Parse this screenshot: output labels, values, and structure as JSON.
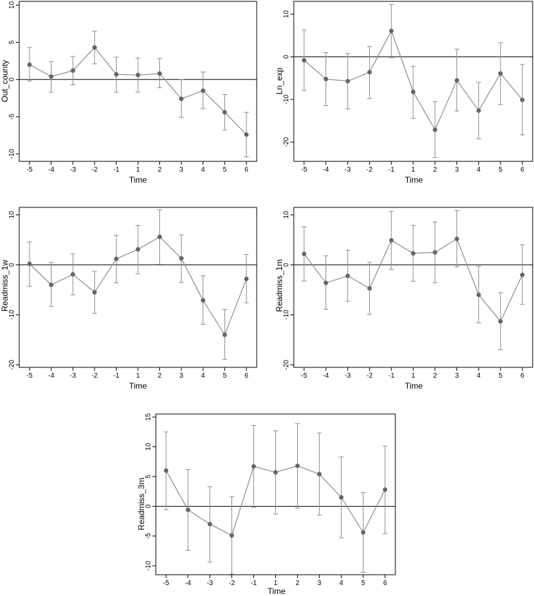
{
  "chart_data": [
    {
      "type": "line",
      "xlabel": "Time",
      "ylabel": "Out_county",
      "categories": [
        "-5",
        "-4",
        "-3",
        "-2",
        "-1",
        "1",
        "2",
        "3",
        "4",
        "5",
        "6"
      ],
      "ylim": [
        -11,
        10.5
      ],
      "yticks": [
        -10,
        -5,
        0,
        5,
        10
      ],
      "series": [
        {
          "values": [
            2.0,
            0.4,
            1.2,
            4.3,
            0.7,
            0.6,
            0.8,
            -2.6,
            -1.5,
            -4.4,
            -7.4
          ],
          "ci_low": [
            -0.2,
            -1.7,
            -0.7,
            2.1,
            -1.7,
            -1.7,
            -1.1,
            -5.1,
            -3.9,
            -6.8,
            -10.4
          ],
          "ci_high": [
            4.3,
            2.4,
            3.1,
            6.5,
            3.0,
            2.9,
            2.8,
            0.0,
            1.0,
            -2.0,
            -4.4
          ]
        }
      ],
      "reference_line": 0
    },
    {
      "type": "line",
      "xlabel": "Time",
      "ylabel": "Ln_exp",
      "categories": [
        "-5",
        "-4",
        "-3",
        "-2",
        "-1",
        "1",
        "2",
        "3",
        "4",
        "5",
        "6"
      ],
      "ylim": [
        -24.5,
        13
      ],
      "yticks": [
        -20,
        -10,
        0,
        10
      ],
      "series": [
        {
          "values": [
            -0.8,
            -5.2,
            -5.7,
            -3.6,
            6.1,
            -8.2,
            -17.1,
            -5.5,
            -12.6,
            -3.9,
            -10.1
          ],
          "ci_low": [
            -7.9,
            -11.4,
            -12.2,
            -9.8,
            -0.2,
            -14.4,
            -23.6,
            -12.7,
            -19.2,
            -11.2,
            -18.3
          ],
          "ci_high": [
            6.3,
            1.0,
            0.8,
            2.4,
            12.3,
            -2.2,
            -10.5,
            1.8,
            -6.0,
            3.3,
            -1.8
          ]
        }
      ],
      "reference_line": 0
    },
    {
      "type": "line",
      "xlabel": "Time",
      "ylabel": "Readmiss_1w",
      "categories": [
        "-5",
        "-4",
        "-3",
        "-2",
        "-1",
        "1",
        "2",
        "3",
        "4",
        "5",
        "6"
      ],
      "ylim": [
        -20.5,
        11.5
      ],
      "yticks": [
        -20,
        -10,
        0,
        10
      ],
      "series": [
        {
          "values": [
            0.2,
            -4.0,
            -1.9,
            -5.5,
            1.2,
            3.1,
            5.6,
            1.3,
            -7.1,
            -14.0,
            -2.8
          ],
          "ci_low": [
            -4.3,
            -8.3,
            -6.0,
            -9.7,
            -3.6,
            -1.8,
            0.1,
            -3.5,
            -11.9,
            -18.9,
            -7.6
          ],
          "ci_high": [
            4.6,
            0.5,
            2.2,
            -1.3,
            5.9,
            7.9,
            11.0,
            6.0,
            -2.2,
            -8.9,
            2.1
          ]
        }
      ],
      "reference_line": 0
    },
    {
      "type": "line",
      "xlabel": "Time",
      "ylabel": "Readmiss_1m",
      "categories": [
        "-5",
        "-4",
        "-3",
        "-2",
        "-1",
        "1",
        "2",
        "3",
        "4",
        "5",
        "6"
      ],
      "ylim": [
        -20.5,
        11.5
      ],
      "yticks": [
        -20,
        -10,
        0,
        10
      ],
      "series": [
        {
          "values": [
            2.2,
            -3.6,
            -2.2,
            -4.7,
            4.9,
            2.3,
            2.5,
            5.2,
            -6.0,
            -11.3,
            -2.0
          ],
          "ci_low": [
            -3.2,
            -8.9,
            -7.3,
            -9.9,
            -0.9,
            -3.3,
            -3.6,
            -0.4,
            -11.6,
            -17.0,
            -7.9
          ],
          "ci_high": [
            7.6,
            1.8,
            2.9,
            0.5,
            10.7,
            7.9,
            8.6,
            10.9,
            -0.3,
            -5.6,
            4.0
          ]
        }
      ],
      "reference_line": 0
    },
    {
      "type": "line",
      "xlabel": "Time",
      "ylabel": "Readmiss_3m",
      "categories": [
        "-5",
        "-4",
        "-3",
        "-2",
        "-1",
        "1",
        "2",
        "3",
        "4",
        "5",
        "6"
      ],
      "ylim": [
        -11.5,
        15.5
      ],
      "yticks": [
        -10,
        -5,
        0,
        5,
        10,
        15
      ],
      "series": [
        {
          "values": [
            6.0,
            -0.6,
            -3.0,
            -4.9,
            6.7,
            5.7,
            6.8,
            5.4,
            1.5,
            -4.4,
            2.8
          ],
          "ci_low": [
            -0.6,
            -7.4,
            -9.4,
            -11.4,
            -0.2,
            -1.3,
            -0.3,
            -1.5,
            -5.3,
            -11.1,
            -4.6
          ],
          "ci_high": [
            12.5,
            6.2,
            3.3,
            1.6,
            13.6,
            12.7,
            13.9,
            12.3,
            8.3,
            2.3,
            10.1
          ]
        }
      ],
      "reference_line": 0
    }
  ]
}
